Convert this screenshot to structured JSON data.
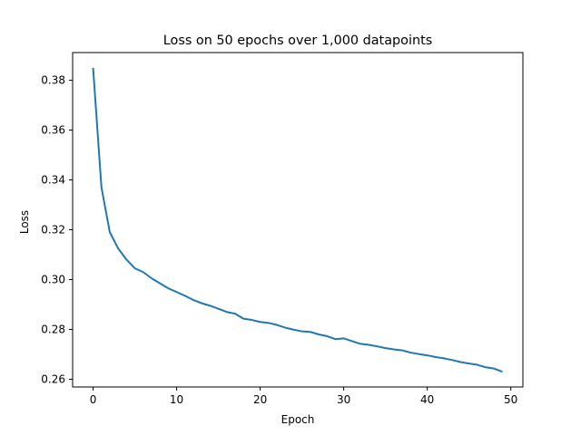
{
  "chart_data": {
    "type": "line",
    "title": "Loss on 50 epochs over 1,000 datapoints",
    "xlabel": "Epoch",
    "ylabel": "Loss",
    "xlim": [
      -2.45,
      51.45
    ],
    "ylim": [
      0.2569,
      0.3911
    ],
    "xticks": [
      0,
      10,
      20,
      30,
      40,
      50
    ],
    "xtick_labels": [
      "0",
      "10",
      "20",
      "30",
      "40",
      "50"
    ],
    "yticks": [
      0.26,
      0.28,
      0.3,
      0.32,
      0.34,
      0.36,
      0.38
    ],
    "ytick_labels": [
      "0.26",
      "0.28",
      "0.30",
      "0.32",
      "0.34",
      "0.36",
      "0.38"
    ],
    "grid": false,
    "legend": "none",
    "series": [
      {
        "color": "#1f77b4",
        "x": [
          0,
          1,
          2,
          3,
          4,
          5,
          6,
          7,
          8,
          9,
          10,
          11,
          12,
          13,
          14,
          15,
          16,
          17,
          18,
          19,
          20,
          21,
          22,
          23,
          24,
          25,
          26,
          27,
          28,
          29,
          30,
          31,
          32,
          33,
          34,
          35,
          36,
          37,
          38,
          39,
          40,
          41,
          42,
          43,
          44,
          45,
          46,
          47,
          48,
          49
        ],
        "values": [
          0.385,
          0.337,
          0.319,
          0.3125,
          0.308,
          0.3045,
          0.303,
          0.3005,
          0.2985,
          0.2965,
          0.295,
          0.2935,
          0.2918,
          0.2905,
          0.2895,
          0.2883,
          0.287,
          0.2863,
          0.2843,
          0.2838,
          0.283,
          0.2826,
          0.2818,
          0.2807,
          0.2799,
          0.2792,
          0.279,
          0.278,
          0.2773,
          0.2761,
          0.2764,
          0.2753,
          0.2742,
          0.2738,
          0.2732,
          0.2725,
          0.272,
          0.2716,
          0.2707,
          0.2701,
          0.2696,
          0.2689,
          0.2684,
          0.2677,
          0.2669,
          0.2663,
          0.2658,
          0.2648,
          0.2643,
          0.263
        ]
      }
    ]
  }
}
